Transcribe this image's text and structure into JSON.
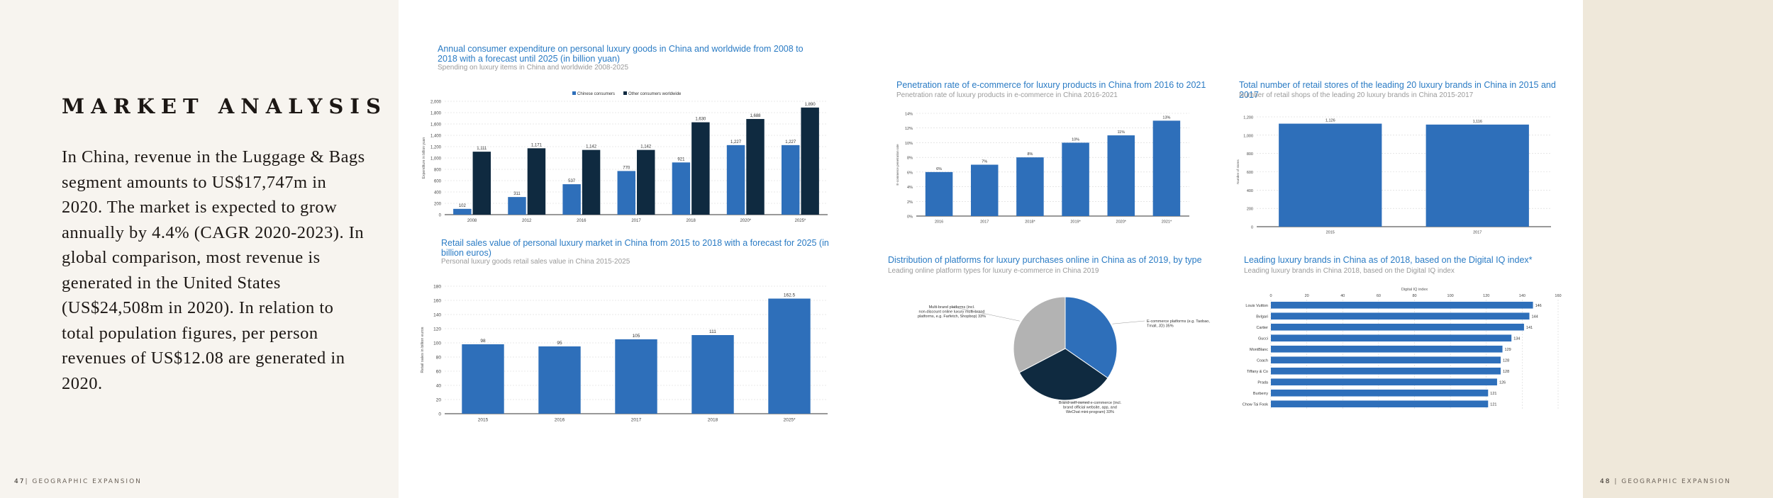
{
  "left": {
    "title": "MARKET ANALYSIS",
    "body": "In China, revenue in the Luggage & Bags segment amounts to US$17,747m in 2020. The market is expected to grow annually by 4.4% (CAGR 2020-2023). In global comparison, most revenue is generated in the United States (US$24,508m in 2020). In relation to total population figures, per person revenues of US$12.08 are generated in 2020."
  },
  "footer": {
    "left_page": "47",
    "left_label": "| GEOGRAPHIC EXPANSION",
    "right_page": "48",
    "right_label": "| GEOGRAPHIC EXPANSION"
  },
  "colors": {
    "primary": "#2e6fba",
    "dark": "#0f2a40",
    "gray": "#b3b3b3",
    "title_blue": "#2a7bc4"
  },
  "chart_data": [
    {
      "id": "expenditure",
      "type": "bar",
      "title": "Annual consumer expenditure on personal luxury goods in China and worldwide from 2008 to 2018 with a forecast until 2025 (in billion yuan)",
      "subtitle": "Spending on luxury items in China and worldwide 2008-2025",
      "ylabel": "Expenditure in billion yuan",
      "categories": [
        "2008",
        "2012",
        "2016",
        "2017",
        "2018",
        "2020*",
        "2025*"
      ],
      "series": [
        {
          "name": "Chinese consumers",
          "values": [
            102,
            311,
            537,
            770,
            921,
            1227,
            1227
          ]
        },
        {
          "name": "Other consumers worldwide",
          "values": [
            1111,
            1171,
            1142,
            1142,
            1630,
            1688,
            1890
          ]
        }
      ],
      "data_labels": [
        [
          "102",
          "311",
          "537",
          "770",
          "921",
          "1,227",
          "1,227"
        ],
        [
          "1,111",
          "1,171",
          "1,142",
          "1,142",
          "1,630",
          "1,688",
          "1,890"
        ]
      ],
      "ylim": [
        0,
        2000
      ],
      "yticks": [
        "0",
        "200",
        "400",
        "600",
        "800",
        "1,000",
        "1,200",
        "1,400",
        "1,600",
        "1,800",
        "2,000"
      ],
      "legend": "top"
    },
    {
      "id": "retail_sales",
      "type": "bar",
      "title": "Retail sales value of personal luxury market in China from 2015 to 2018 with a forecast for 2025 (in billion euros)",
      "subtitle": "Personal luxury goods retail sales value in China 2015-2025",
      "ylabel": "Retail sales in billion euros",
      "categories": [
        "2015",
        "2016",
        "2017",
        "2018",
        "2025*"
      ],
      "values": [
        98,
        95,
        105,
        111,
        162.5
      ],
      "data_labels": [
        "98",
        "95",
        "105",
        "111",
        "162.5"
      ],
      "ylim": [
        0,
        180
      ],
      "yticks": [
        "0",
        "20",
        "40",
        "60",
        "80",
        "100",
        "120",
        "140",
        "160",
        "180"
      ]
    },
    {
      "id": "penetration",
      "type": "bar",
      "title": "Penetration rate of e-commerce for luxury products in China from 2016 to 2021",
      "subtitle": "Penetration rate of luxury products in e-commerce in China 2016-2021",
      "ylabel": "E-commerce penetration rate",
      "categories": [
        "2016",
        "2017",
        "2018*",
        "2019*",
        "2020*",
        "2021*"
      ],
      "values": [
        6,
        7,
        8,
        10,
        11,
        13
      ],
      "data_labels": [
        "6%",
        "7%",
        "8%",
        "10%",
        "11%",
        "13%"
      ],
      "ylim": [
        0,
        14
      ],
      "yticks": [
        "0%",
        "2%",
        "4%",
        "6%",
        "8%",
        "10%",
        "12%",
        "14%"
      ]
    },
    {
      "id": "stores",
      "type": "bar",
      "title": "Total number of retail stores of the leading 20 luxury brands in China in 2015 and 2017",
      "subtitle": "Number of retail shops of the leading 20 luxury brands in China 2015-2017",
      "ylabel": "Number of stores",
      "categories": [
        "2015",
        "2017"
      ],
      "values": [
        1126,
        1116
      ],
      "data_labels": [
        "1,126",
        "1,116"
      ],
      "ylim": [
        0,
        1200
      ],
      "yticks": [
        "0",
        "200",
        "400",
        "600",
        "800",
        "1,000",
        "1,200"
      ]
    },
    {
      "id": "platforms",
      "type": "pie",
      "title": "Distribution of platforms for luxury purchases online in China as of 2019, by type",
      "subtitle": "Leading online platform types for luxury e-commerce in China 2019",
      "slices": [
        {
          "label": "E-commerce platforms (e.g. Taobao, Tmall, JD) 35%",
          "value": 35,
          "color": "#2e6fba"
        },
        {
          "label": "Brand-self-owned e-commerce (incl. brand official website, app, and WeChat mini-program) 33%",
          "value": 33,
          "color": "#0f2a40"
        },
        {
          "label": "Multi-brand platforms (incl. non-discount online luxury multi-brand platforms, e.g. Farfetch, Shopbop) 33%",
          "value": 33,
          "color": "#b3b3b3"
        }
      ]
    },
    {
      "id": "brands",
      "type": "bar",
      "orientation": "horizontal",
      "title": "Leading luxury brands in China as of 2018, based on the Digital IQ index*",
      "subtitle": "Leading luxury brands in China 2018, based on the Digital IQ index",
      "xlabel": "Digital IQ index",
      "categories": [
        "Louis Vuitton",
        "Bvlgari",
        "Cartier",
        "Gucci",
        "MontBlanc",
        "Coach",
        "Tiffany & Co",
        "Prada",
        "Burberry",
        "Chow Tai Fook"
      ],
      "values": [
        146,
        144,
        141,
        134,
        129,
        128,
        128,
        126,
        121,
        121
      ],
      "data_labels": [
        "146",
        "144",
        "141",
        "134",
        "129",
        "128",
        "128",
        "126",
        "121",
        "121"
      ],
      "xlim": [
        0,
        160
      ],
      "xticks": [
        "0",
        "20",
        "40",
        "60",
        "80",
        "100",
        "120",
        "140",
        "160"
      ]
    }
  ]
}
